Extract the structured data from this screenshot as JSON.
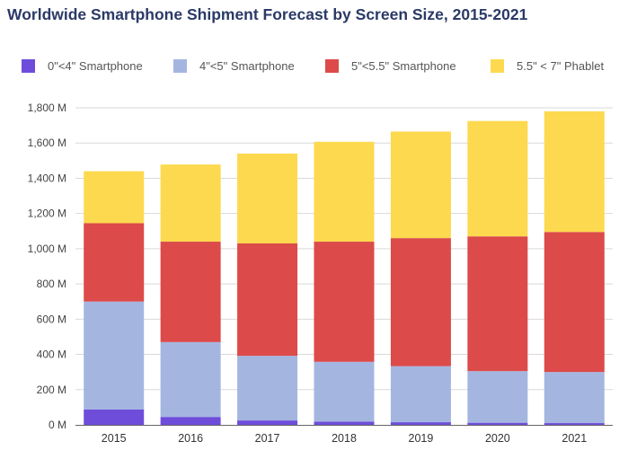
{
  "chart_data": {
    "type": "bar",
    "stacked": true,
    "title": "Worldwide Smartphone Shipment Forecast by Screen Size, 2015-2021",
    "categories": [
      "2015",
      "2016",
      "2017",
      "2018",
      "2019",
      "2020",
      "2021"
    ],
    "series": [
      {
        "name": "0\"<4\" Smartphone",
        "color": "#6e4ddb",
        "values": [
          88,
          45,
          25,
          18,
          15,
          12,
          10
        ]
      },
      {
        "name": "4\"<5\" Smartphone",
        "color": "#a4b6e0",
        "values": [
          612,
          425,
          367,
          340,
          318,
          293,
          290
        ]
      },
      {
        "name": "5\"<5.5\" Smartphone",
        "color": "#dc4a4a",
        "values": [
          445,
          570,
          638,
          682,
          727,
          765,
          795
        ]
      },
      {
        "name": "5.5\" < 7\" Phablet",
        "color": "#fdd94f",
        "values": [
          295,
          438,
          510,
          567,
          605,
          655,
          685
        ]
      }
    ],
    "ylim": [
      0,
      1800
    ],
    "yticks": [
      0,
      200,
      400,
      600,
      800,
      1000,
      1200,
      1400,
      1600,
      1800
    ],
    "ytick_labels": [
      "0 M",
      "200 M",
      "400 M",
      "600 M",
      "800 M",
      "1,000 M",
      "1,200 M",
      "1,400 M",
      "1,600 M",
      "1,800 M"
    ],
    "xlabel": "",
    "ylabel": "",
    "grid": true,
    "legend_position": "top"
  }
}
